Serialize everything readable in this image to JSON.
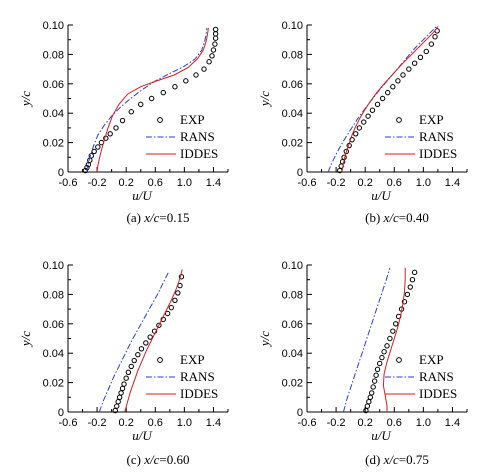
{
  "chart_data": [
    {
      "type": "line",
      "caption": {
        "prefix": "(a) ",
        "var": "x/c",
        "eq": "=0.15"
      },
      "xlabel": "u/U",
      "ylabel": "y/c",
      "xlim": [
        -0.6,
        1.6
      ],
      "ylim": [
        0,
        0.1
      ],
      "xticks": [
        "-0.6",
        "-0.2",
        "0.2",
        "0.6",
        "1.0",
        "1.4"
      ],
      "yticks": [
        "0",
        "0.02",
        "0.04",
        "0.06",
        "0.08",
        "0.10"
      ],
      "legend_position": "bottom-right",
      "series": [
        {
          "name": "EXP",
          "style": "circle",
          "x": [
            -0.36,
            -0.34,
            -0.32,
            -0.3,
            -0.28,
            -0.24,
            -0.19,
            -0.14,
            -0.08,
            -0.02,
            0.06,
            0.15,
            0.27,
            0.4,
            0.55,
            0.71,
            0.87,
            1.02,
            1.16,
            1.27,
            1.34,
            1.38,
            1.4,
            1.42,
            1.43,
            1.43,
            1.43
          ],
          "y": [
            0.001,
            0.003,
            0.005,
            0.008,
            0.011,
            0.014,
            0.017,
            0.02,
            0.023,
            0.026,
            0.03,
            0.035,
            0.041,
            0.046,
            0.05,
            0.054,
            0.058,
            0.062,
            0.066,
            0.07,
            0.075,
            0.079,
            0.083,
            0.087,
            0.091,
            0.094,
            0.097
          ]
        },
        {
          "name": "RANS",
          "style": "dashdot",
          "color": "#2a3fd8",
          "x": [
            -0.34,
            -0.33,
            -0.31,
            -0.28,
            -0.24,
            -0.19,
            -0.1,
            0.0,
            0.12,
            0.26,
            0.42,
            0.6,
            0.8,
            1.0,
            1.15,
            1.24,
            1.28,
            1.3,
            1.31
          ],
          "y": [
            0.0,
            0.004,
            0.008,
            0.013,
            0.019,
            0.025,
            0.032,
            0.038,
            0.044,
            0.05,
            0.056,
            0.062,
            0.067,
            0.072,
            0.077,
            0.083,
            0.089,
            0.094,
            0.098
          ]
        },
        {
          "name": "IDDES",
          "style": "solid",
          "color": "#d61f1f",
          "x": [
            -0.2,
            -0.19,
            -0.17,
            -0.14,
            -0.1,
            -0.05,
            0.01,
            0.1,
            0.22,
            0.4,
            0.62,
            0.86,
            1.05,
            1.18,
            1.26,
            1.3,
            1.32,
            1.33
          ],
          "y": [
            0.0,
            0.004,
            0.009,
            0.015,
            0.022,
            0.03,
            0.038,
            0.046,
            0.053,
            0.058,
            0.062,
            0.066,
            0.071,
            0.077,
            0.083,
            0.089,
            0.094,
            0.098
          ]
        }
      ]
    },
    {
      "type": "line",
      "caption": {
        "prefix": "(b) ",
        "var": "x/c",
        "eq": "=0.40"
      },
      "xlabel": "u/U",
      "ylabel": "y/c",
      "xlim": [
        -0.6,
        1.6
      ],
      "ylim": [
        0,
        0.1
      ],
      "xticks": [
        "-0.6",
        "-0.2",
        "0.2",
        "0.6",
        "1.0",
        "1.4"
      ],
      "yticks": [
        "0",
        "0.02",
        "0.04",
        "0.06",
        "0.08",
        "0.10"
      ],
      "legend_position": "bottom-right",
      "series": [
        {
          "name": "EXP",
          "style": "circle",
          "x": [
            -0.15,
            -0.13,
            -0.11,
            -0.09,
            -0.06,
            -0.02,
            0.02,
            0.07,
            0.12,
            0.18,
            0.24,
            0.3,
            0.37,
            0.44,
            0.51,
            0.58,
            0.65,
            0.72,
            0.8,
            0.88,
            0.96,
            1.04,
            1.11,
            1.16,
            1.19
          ],
          "y": [
            0.001,
            0.004,
            0.007,
            0.01,
            0.014,
            0.018,
            0.022,
            0.026,
            0.03,
            0.034,
            0.038,
            0.042,
            0.046,
            0.05,
            0.054,
            0.058,
            0.062,
            0.066,
            0.07,
            0.074,
            0.078,
            0.082,
            0.087,
            0.092,
            0.096
          ]
        },
        {
          "name": "RANS",
          "style": "dashdot",
          "color": "#2a3fd8",
          "x": [
            -0.31,
            -0.25,
            -0.18,
            -0.1,
            -0.01,
            0.08,
            0.18,
            0.29,
            0.4,
            0.52,
            0.64,
            0.76,
            0.88,
            1.0,
            1.1,
            1.18
          ],
          "y": [
            0.0,
            0.007,
            0.014,
            0.021,
            0.028,
            0.035,
            0.042,
            0.049,
            0.056,
            0.063,
            0.07,
            0.077,
            0.084,
            0.09,
            0.095,
            0.099
          ]
        },
        {
          "name": "IDDES",
          "style": "solid",
          "color": "#d61f1f",
          "x": [
            -0.12,
            -0.1,
            -0.07,
            -0.03,
            0.01,
            0.06,
            0.12,
            0.19,
            0.27,
            0.36,
            0.46,
            0.57,
            0.68,
            0.8,
            0.92,
            1.04,
            1.14,
            1.2
          ],
          "y": [
            0.0,
            0.006,
            0.012,
            0.018,
            0.024,
            0.03,
            0.036,
            0.042,
            0.048,
            0.054,
            0.06,
            0.066,
            0.072,
            0.078,
            0.084,
            0.09,
            0.095,
            0.099
          ]
        }
      ]
    },
    {
      "type": "line",
      "caption": {
        "prefix": "(c) ",
        "var": "x/c",
        "eq": "=0.60"
      },
      "xlabel": "u/U",
      "ylabel": "y/c",
      "xlim": [
        -0.6,
        1.6
      ],
      "ylim": [
        0,
        0.1
      ],
      "xticks": [
        "-0.6",
        "-0.2",
        "0.2",
        "0.6",
        "1.0",
        "1.4"
      ],
      "yticks": [
        "0",
        "0.02",
        "0.04",
        "0.06",
        "0.08",
        "0.10"
      ],
      "legend_position": "bottom-right",
      "series": [
        {
          "name": "EXP",
          "style": "circle",
          "x": [
            0.05,
            0.07,
            0.09,
            0.11,
            0.13,
            0.15,
            0.17,
            0.2,
            0.23,
            0.27,
            0.31,
            0.36,
            0.41,
            0.47,
            0.53,
            0.59,
            0.65,
            0.71,
            0.77,
            0.82,
            0.87,
            0.91,
            0.94,
            0.96
          ],
          "y": [
            0.001,
            0.004,
            0.007,
            0.01,
            0.013,
            0.016,
            0.019,
            0.023,
            0.027,
            0.031,
            0.035,
            0.039,
            0.043,
            0.047,
            0.051,
            0.055,
            0.059,
            0.063,
            0.067,
            0.071,
            0.076,
            0.081,
            0.086,
            0.092
          ]
        },
        {
          "name": "RANS",
          "style": "dashdot",
          "color": "#2a3fd8",
          "x": [
            -0.17,
            -0.11,
            -0.04,
            0.03,
            0.11,
            0.19,
            0.27,
            0.36,
            0.45,
            0.54,
            0.63,
            0.71,
            0.78
          ],
          "y": [
            0.0,
            0.008,
            0.016,
            0.024,
            0.032,
            0.04,
            0.048,
            0.056,
            0.064,
            0.072,
            0.08,
            0.088,
            0.095
          ]
        },
        {
          "name": "IDDES",
          "style": "solid",
          "color": "#d61f1f",
          "x": [
            0.18,
            0.22,
            0.26,
            0.31,
            0.36,
            0.42,
            0.48,
            0.55,
            0.62,
            0.69,
            0.76,
            0.83,
            0.89,
            0.94,
            0.97
          ],
          "y": [
            0.0,
            0.007,
            0.014,
            0.021,
            0.028,
            0.035,
            0.042,
            0.049,
            0.056,
            0.063,
            0.07,
            0.077,
            0.084,
            0.091,
            0.097
          ]
        }
      ]
    },
    {
      "type": "line",
      "caption": {
        "prefix": "(d) ",
        "var": "x/c",
        "eq": "=0.75"
      },
      "xlabel": "u/U",
      "ylabel": "y/c",
      "xlim": [
        -0.6,
        1.6
      ],
      "ylim": [
        0,
        0.1
      ],
      "xticks": [
        "-0.6",
        "-0.2",
        "0.2",
        "0.6",
        "1.0",
        "1.4"
      ],
      "yticks": [
        "0",
        "0.02",
        "0.04",
        "0.06",
        "0.08",
        "0.10"
      ],
      "legend_position": "bottom-right",
      "series": [
        {
          "name": "EXP",
          "style": "circle",
          "x": [
            0.21,
            0.23,
            0.25,
            0.27,
            0.29,
            0.31,
            0.33,
            0.35,
            0.37,
            0.4,
            0.43,
            0.46,
            0.5,
            0.54,
            0.58,
            0.62,
            0.66,
            0.7,
            0.74,
            0.78,
            0.82,
            0.85,
            0.88
          ],
          "y": [
            0.001,
            0.004,
            0.007,
            0.01,
            0.013,
            0.017,
            0.021,
            0.025,
            0.029,
            0.033,
            0.037,
            0.041,
            0.045,
            0.05,
            0.055,
            0.06,
            0.065,
            0.07,
            0.075,
            0.08,
            0.085,
            0.09,
            0.095
          ]
        },
        {
          "name": "RANS",
          "style": "dashdot",
          "color": "#2a3fd8",
          "x": [
            -0.1,
            -0.05,
            0.01,
            0.07,
            0.13,
            0.19,
            0.25,
            0.31,
            0.37,
            0.43,
            0.49,
            0.54
          ],
          "y": [
            0.0,
            0.009,
            0.018,
            0.027,
            0.036,
            0.045,
            0.054,
            0.063,
            0.072,
            0.081,
            0.09,
            0.098
          ]
        },
        {
          "name": "IDDES",
          "style": "solid",
          "color": "#d61f1f",
          "x": [
            0.5,
            0.5,
            0.48,
            0.45,
            0.46,
            0.5,
            0.55,
            0.6,
            0.65,
            0.69,
            0.72,
            0.74,
            0.75,
            0.75
          ],
          "y": [
            0.0,
            0.004,
            0.01,
            0.018,
            0.026,
            0.034,
            0.042,
            0.05,
            0.058,
            0.066,
            0.074,
            0.082,
            0.09,
            0.098
          ]
        }
      ]
    }
  ]
}
